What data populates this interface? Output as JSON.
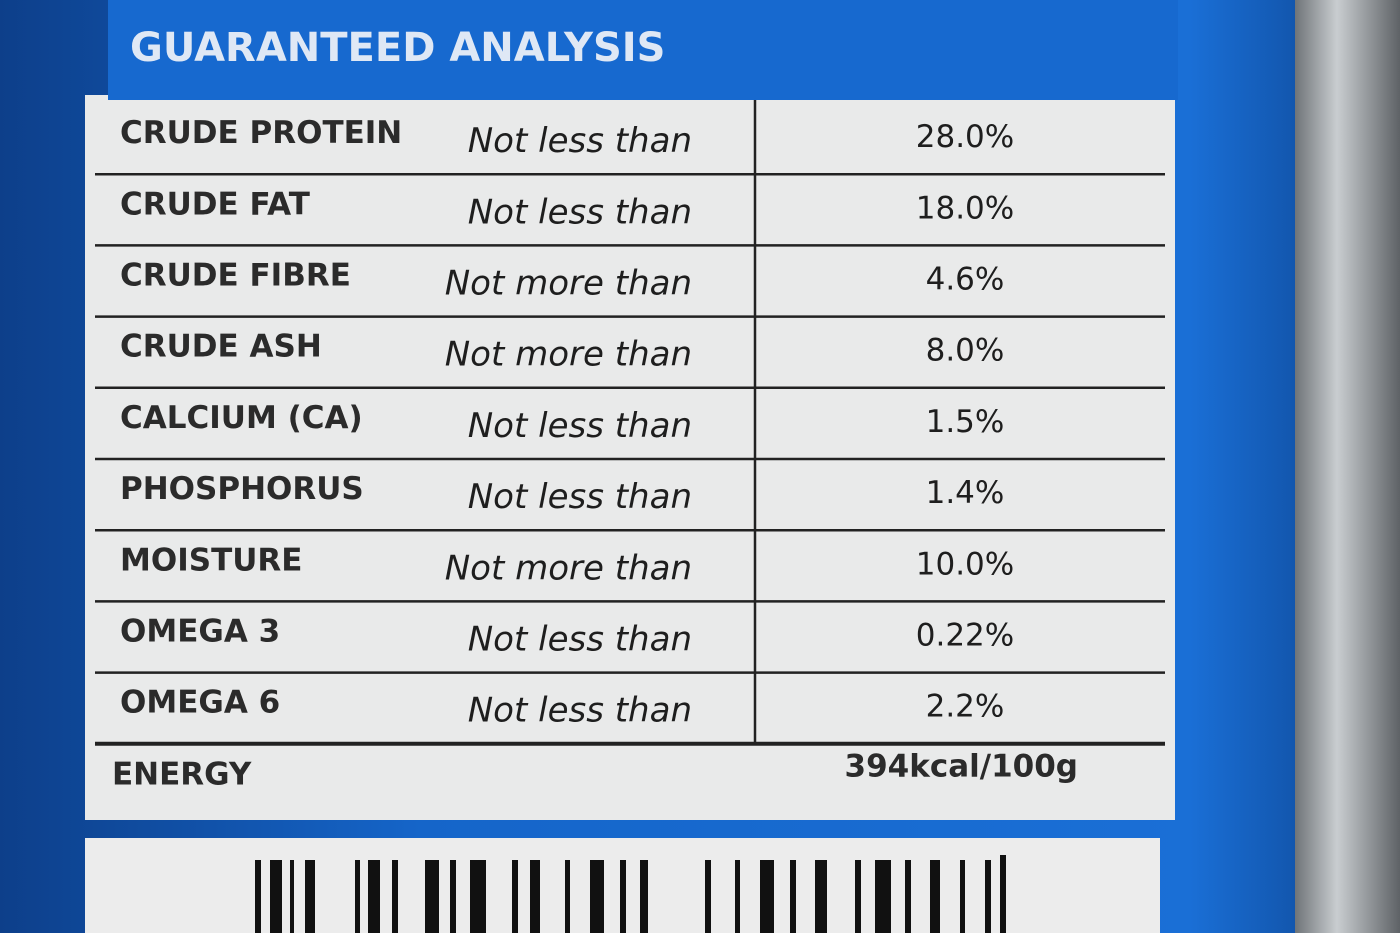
{
  "label": {
    "title": "GUARANTEED ANALYSIS",
    "rows": [
      [
        "CRUDE PROTEIN",
        "Not less than",
        "28.0%"
      ],
      [
        "CRUDE FAT",
        "Not less than",
        "18.0%"
      ],
      [
        "CRUDE FIBRE",
        "Not more than",
        "4.6%"
      ],
      [
        "CRUDE ASH",
        "Not more than",
        "8.0%"
      ],
      [
        "CALCIUM (CA)",
        "Not less than",
        "1.5%"
      ],
      [
        "PHOSPHORUS",
        "Not less than",
        "1.4%"
      ],
      [
        "MOISTURE",
        "Not more than",
        "10.0%"
      ],
      [
        "OMEGA 3",
        "Not less than",
        "0.22%"
      ],
      [
        "OMEGA 6",
        "Not less than",
        "2.2%"
      ]
    ],
    "energy": {
      "name": "ENERGY",
      "value": "394kcal/100g"
    }
  }
}
